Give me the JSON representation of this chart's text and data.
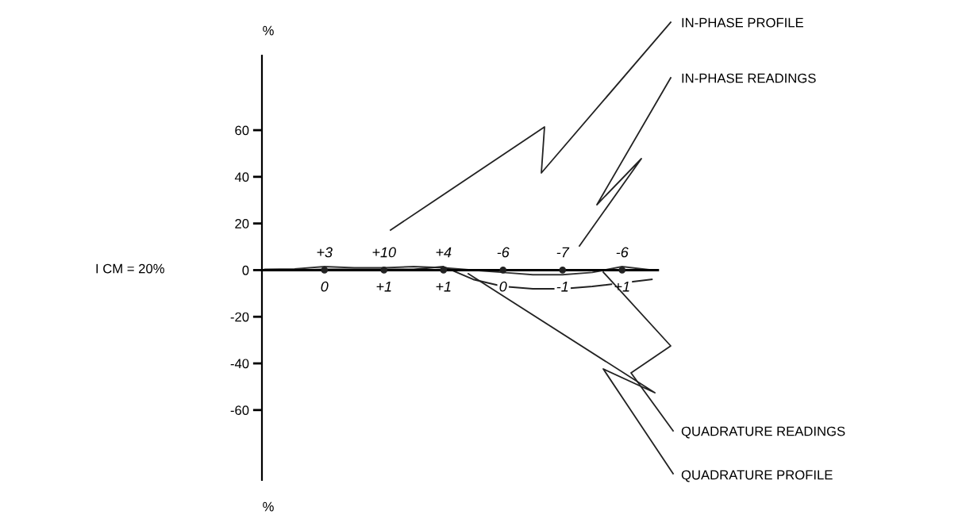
{
  "chart_data": {
    "type": "line",
    "ylabel": "%",
    "categories": [
      null,
      null,
      null,
      null,
      null,
      null,
      null,
      null,
      null,
      null,
      null,
      null,
      null,
      null
    ],
    "series": [
      {
        "color": "#333333",
        "values": [
          0.3,
          0.5,
          1.5,
          1,
          1,
          1.5,
          1,
          0,
          -1,
          -2,
          -2,
          -1,
          1.5,
          0
        ]
      },
      {
        "color": "#222222",
        "values": [
          0,
          0,
          0.3,
          0.3,
          0.3,
          0.3,
          1.5,
          -4,
          -7,
          -8,
          -8,
          -7,
          null,
          -4
        ]
      },
      {
        "type": "scatter",
        "color": "#222222",
        "marker": "circle",
        "values": [
          null,
          null,
          0,
          null,
          0,
          null,
          0,
          null,
          0,
          null,
          0,
          null,
          0,
          null
        ]
      }
    ],
    "ylim": [
      -90,
      92
    ],
    "yticks": [
      -60,
      -40,
      -20,
      0,
      20,
      40,
      60
    ],
    "tick_labels": "y",
    "annotations": [
      "%",
      "I CM = 20%",
      "IN-PHASE PROFILE",
      "IN-PHASE READINGS",
      "QUADRATURE READINGS",
      "QUADRATURE PROFILE",
      "+3",
      "+10",
      "+4",
      "-6",
      "-7",
      "-6",
      "0",
      "+1",
      "+1",
      "0",
      "-1",
      "+1"
    ]
  }
}
